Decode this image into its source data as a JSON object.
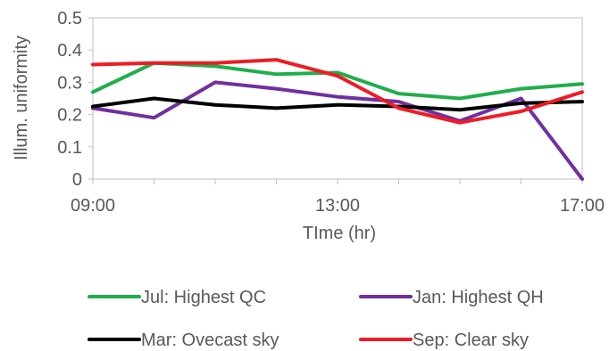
{
  "chart_data": {
    "type": "line",
    "title": "",
    "xlabel": "TIme (hr)",
    "ylabel": "Illum. uniformity",
    "x": [
      9,
      10,
      11,
      12,
      13,
      14,
      15,
      16,
      17
    ],
    "xticks": [
      {
        "value": 9,
        "label": "09:00"
      },
      {
        "value": 13,
        "label": "13:00"
      },
      {
        "value": 17,
        "label": "17:00"
      }
    ],
    "xlim": [
      9,
      17
    ],
    "ylim": [
      0,
      0.5
    ],
    "yticks": [
      {
        "value": 0,
        "label": "0"
      },
      {
        "value": 0.1,
        "label": "0.1"
      },
      {
        "value": 0.2,
        "label": "0.2"
      },
      {
        "value": 0.3,
        "label": "0.3"
      },
      {
        "value": 0.4,
        "label": "0.4"
      },
      {
        "value": 0.5,
        "label": "0.5"
      }
    ],
    "grid": false,
    "legend_position": "bottom",
    "series": [
      {
        "name": "Jul: Highest QC",
        "color": "#1fae4b",
        "values": [
          0.27,
          0.36,
          0.35,
          0.325,
          0.33,
          0.265,
          0.25,
          0.28,
          0.295
        ]
      },
      {
        "name": "Jan: Highest QH",
        "color": "#7030a0",
        "values": [
          0.22,
          0.19,
          0.3,
          0.28,
          0.255,
          0.24,
          0.18,
          0.25,
          0.0
        ]
      },
      {
        "name": "Mar: Ovecast sky",
        "color": "#000000",
        "values": [
          0.225,
          0.25,
          0.23,
          0.22,
          0.23,
          0.225,
          0.215,
          0.235,
          0.24
        ]
      },
      {
        "name": "Sep: Clear sky",
        "color": "#ee1c25",
        "values": [
          0.355,
          0.36,
          0.36,
          0.37,
          0.32,
          0.22,
          0.175,
          0.21,
          0.27
        ]
      }
    ]
  }
}
